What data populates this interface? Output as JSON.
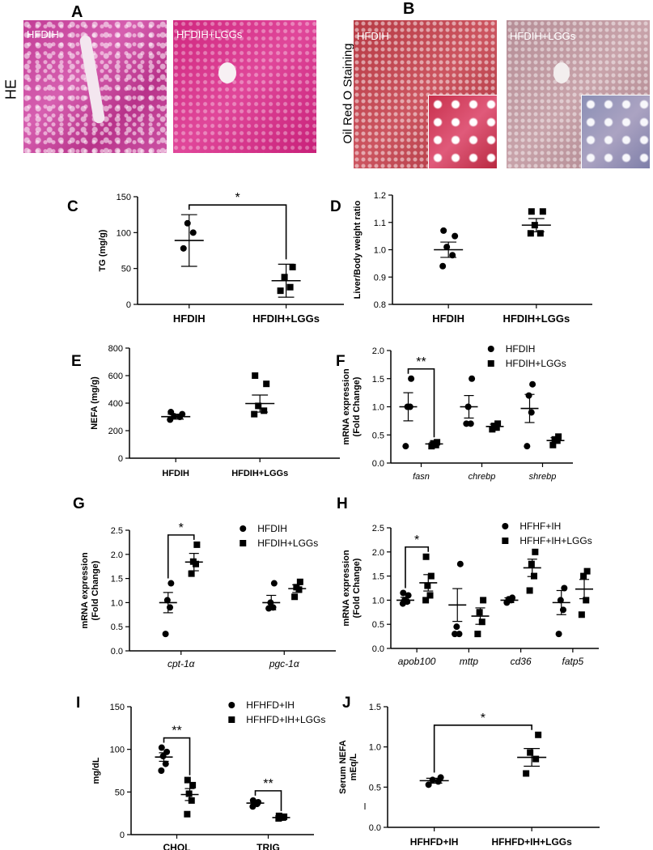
{
  "micrographs": {
    "side_label_he": "HE",
    "side_label_oil": "Oil Red O Staining",
    "panels": [
      {
        "letter": "A",
        "label_left": "HFDIH",
        "label_right": "HFDIH+LGGs"
      },
      {
        "letter": "B",
        "label_left": "HFDIH",
        "label_right": "HFDIH+LGGs"
      }
    ]
  },
  "chart_data": [
    {
      "panel": "C",
      "type": "scatter",
      "ylabel": "TG (mg/g)",
      "xlabel": "",
      "ylim": [
        0,
        150
      ],
      "yticks": [
        0,
        50,
        100,
        150
      ],
      "categories": [
        "HFDIH",
        "HFDIH+LGGs"
      ],
      "groups": [
        {
          "name": "HFDIH",
          "marker": "circle",
          "points": [
            78,
            100,
            113
          ],
          "mean": 89,
          "sem": 36
        },
        {
          "name": "HFDIH+LGGs",
          "marker": "square",
          "points": [
            19,
            24,
            38,
            52
          ],
          "mean": 33,
          "sem": 23
        }
      ],
      "significance": [
        {
          "label": "*",
          "between": [
            0,
            1
          ]
        }
      ]
    },
    {
      "panel": "D",
      "type": "scatter",
      "ylabel": "Liver/Body weight  ratio",
      "xlabel": "",
      "ylim": [
        0.8,
        1.2
      ],
      "yticks": [
        "0.8",
        "0.9",
        "1.0",
        "1.1",
        "1.2"
      ],
      "categories": [
        "HFDIH",
        "HFDIH+LGGs"
      ],
      "groups": [
        {
          "name": "HFDIH",
          "marker": "circle",
          "points": [
            0.94,
            0.98,
            1.01,
            1.05,
            1.07
          ],
          "mean": 1.0,
          "sem": 0.028
        },
        {
          "name": "HFDIH+LGGs",
          "marker": "square",
          "points": [
            1.06,
            1.06,
            1.09,
            1.14,
            1.14
          ],
          "mean": 1.09,
          "sem": 0.024
        }
      ]
    },
    {
      "panel": "E",
      "type": "scatter",
      "ylabel": "NEFA (mg/g)",
      "xlabel": "",
      "ylim": [
        0,
        800
      ],
      "yticks": [
        0,
        200,
        400,
        600,
        800
      ],
      "categories": [
        "HFDIH",
        "HFDIH+LGGs"
      ],
      "groups": [
        {
          "name": "HFDIH",
          "marker": "circle",
          "points": [
            280,
            300,
            305,
            320,
            335
          ],
          "mean": 302,
          "sem": 18
        },
        {
          "name": "HFDIH+LGGs",
          "marker": "square",
          "points": [
            320,
            345,
            380,
            540,
            600
          ],
          "mean": 397,
          "sem": 62
        }
      ]
    },
    {
      "panel": "F",
      "type": "scatter",
      "ylabel": "mRNA expression\n(Fold Change)",
      "xlabel": "",
      "ylim": [
        0,
        2.0
      ],
      "yticks": [
        "0.0",
        "0.5",
        "1.0",
        "1.5",
        "2.0"
      ],
      "categories": [
        "fasn",
        "chrebp",
        "shrebp"
      ],
      "legend": {
        "position": "top-right",
        "entries": [
          {
            "name": "HFDIH",
            "marker": "circle"
          },
          {
            "name": "HFDIH+LGGs",
            "marker": "square"
          }
        ]
      },
      "series": [
        {
          "name": "HFDIH",
          "marker": "circle",
          "groups": [
            {
              "points": [
                0.3,
                1.0,
                1.0,
                1.5
              ],
              "mean": 1.0,
              "sem": 0.25
            },
            {
              "points": [
                0.7,
                0.7,
                1.0,
                1.5
              ],
              "mean": 1.0,
              "sem": 0.2
            },
            {
              "points": [
                0.3,
                0.9,
                1.2,
                1.4
              ],
              "mean": 0.97,
              "sem": 0.25
            }
          ]
        },
        {
          "name": "HFDIH+LGGs",
          "marker": "square",
          "groups": [
            {
              "points": [
                0.3,
                0.32,
                0.35,
                0.37
              ],
              "mean": 0.34,
              "sem": 0.03
            },
            {
              "points": [
                0.6,
                0.63,
                0.66,
                0.7
              ],
              "mean": 0.65,
              "sem": 0.04
            },
            {
              "points": [
                0.32,
                0.4,
                0.42,
                0.47
              ],
              "mean": 0.4,
              "sem": 0.05
            }
          ]
        }
      ],
      "significance": [
        {
          "label": "**",
          "category": "fasn"
        }
      ]
    },
    {
      "panel": "G",
      "type": "scatter",
      "ylabel": "mRNA expression\n(Fold Change)",
      "xlabel": "",
      "ylim": [
        0,
        2.5
      ],
      "yticks": [
        "0.0",
        "0.5",
        "1.0",
        "1.5",
        "2.0",
        "2.5"
      ],
      "categories": [
        "cpt-1α",
        "pgc-1α"
      ],
      "legend": {
        "position": "top-right",
        "entries": [
          {
            "name": "HFDIH",
            "marker": "circle"
          },
          {
            "name": "HFDIH+LGGs",
            "marker": "square"
          }
        ]
      },
      "series": [
        {
          "name": "HFDIH",
          "marker": "circle",
          "groups": [
            {
              "points": [
                0.35,
                0.9,
                1.05,
                1.4
              ],
              "mean": 1.0,
              "sem": 0.21
            },
            {
              "points": [
                0.88,
                0.9,
                1.0,
                1.4
              ],
              "mean": 1.0,
              "sem": 0.15
            }
          ]
        },
        {
          "name": "HFDIH+LGGs",
          "marker": "square",
          "groups": [
            {
              "points": [
                1.6,
                1.8,
                1.85,
                2.2
              ],
              "mean": 1.84,
              "sem": 0.18
            },
            {
              "points": [
                1.12,
                1.27,
                1.32,
                1.43
              ],
              "mean": 1.29,
              "sem": 0.08
            }
          ]
        }
      ],
      "significance": [
        {
          "label": "*",
          "category": "cpt-1α"
        }
      ]
    },
    {
      "panel": "H",
      "type": "scatter",
      "ylabel": "mRNA expression\n(Fold Change)",
      "xlabel": "",
      "ylim": [
        0,
        2.5
      ],
      "yticks": [
        "0.0",
        "0.5",
        "1.0",
        "1.5",
        "2.0",
        "2.5"
      ],
      "categories": [
        "apob100",
        "mttp",
        "cd36",
        "fatp5"
      ],
      "legend": {
        "position": "top-right",
        "entries": [
          {
            "name": "HFHF+IH",
            "marker": "circle"
          },
          {
            "name": "HFHF+IH+LGGs",
            "marker": "square"
          }
        ]
      },
      "series": [
        {
          "name": "HFHF+IH",
          "marker": "circle",
          "groups": [
            {
              "points": [
                0.93,
                0.97,
                1.0,
                1.1,
                1.15
              ],
              "mean": 1.0,
              "sem": 0.06
            },
            {
              "points": [
                0.3,
                0.3,
                0.45,
                1.75
              ],
              "mean": 0.9,
              "sem": 0.34
            },
            {
              "points": [
                0.95,
                1.0,
                1.02,
                1.05
              ],
              "mean": 1.0,
              "sem": 0.05
            },
            {
              "points": [
                0.3,
                0.8,
                1.0,
                1.25
              ],
              "mean": 0.95,
              "sem": 0.25
            }
          ]
        },
        {
          "name": "HFHF+IH+LGGs",
          "marker": "square",
          "groups": [
            {
              "points": [
                1.0,
                1.1,
                1.3,
                1.5,
                1.9
              ],
              "mean": 1.36,
              "sem": 0.17
            },
            {
              "points": [
                0.3,
                0.55,
                0.75,
                1.0
              ],
              "mean": 0.67,
              "sem": 0.17
            },
            {
              "points": [
                1.2,
                1.5,
                1.75,
                2.0
              ],
              "mean": 1.67,
              "sem": 0.18
            },
            {
              "points": [
                0.7,
                1.0,
                1.5,
                1.6
              ],
              "mean": 1.23,
              "sem": 0.2
            }
          ]
        }
      ],
      "significance": [
        {
          "label": "*",
          "category": "apob100"
        }
      ]
    },
    {
      "panel": "I",
      "type": "scatter",
      "ylabel": "mg/dL",
      "xlabel": "",
      "ylim": [
        0,
        150
      ],
      "yticks": [
        0,
        50,
        100,
        150
      ],
      "categories": [
        "CHOL",
        "TRIG"
      ],
      "legend": {
        "position": "top-right",
        "entries": [
          {
            "name": "HFHFD+IH",
            "marker": "circle"
          },
          {
            "name": "HFHFD+IH+LGGs",
            "marker": "square"
          }
        ]
      },
      "series": [
        {
          "name": "HFHFD+IH",
          "marker": "circle",
          "groups": [
            {
              "points": [
                75,
                83,
                92,
                97,
                102
              ],
              "mean": 91,
              "sem": 5
            },
            {
              "points": [
                33,
                36,
                37,
                38,
                40
              ],
              "mean": 37,
              "sem": 2
            }
          ]
        },
        {
          "name": "HFHFD+IH+LGGs",
          "marker": "square",
          "groups": [
            {
              "points": [
                24,
                40,
                48,
                58,
                64
              ],
              "mean": 47,
              "sem": 7
            },
            {
              "points": [
                19,
                20,
                20,
                21,
                22
              ],
              "mean": 20,
              "sem": 1
            }
          ]
        }
      ],
      "significance": [
        {
          "label": "**",
          "category": "CHOL"
        },
        {
          "label": "**",
          "category": "TRIG"
        }
      ]
    },
    {
      "panel": "J",
      "type": "scatter",
      "ylabel": "Serum NEFA\nmEq/L",
      "xlabel": "",
      "ylim": [
        0,
        1.5
      ],
      "yticks": [
        "0.0",
        "0.5",
        "1.0",
        "1.5"
      ],
      "categories": [
        "HFHFD+IH",
        "HFHFD+IH+LGGs"
      ],
      "groups": [
        {
          "name": "HFHFD+IH",
          "marker": "circle",
          "points": [
            0.53,
            0.57,
            0.59,
            0.62
          ],
          "mean": 0.58,
          "sem": 0.03
        },
        {
          "name": "HFHFD+IH+LGGs",
          "marker": "square",
          "points": [
            0.67,
            0.85,
            0.93,
            1.15
          ],
          "mean": 0.87,
          "sem": 0.11
        }
      ],
      "significance": [
        {
          "label": "*",
          "between": [
            0,
            1
          ]
        }
      ]
    }
  ]
}
